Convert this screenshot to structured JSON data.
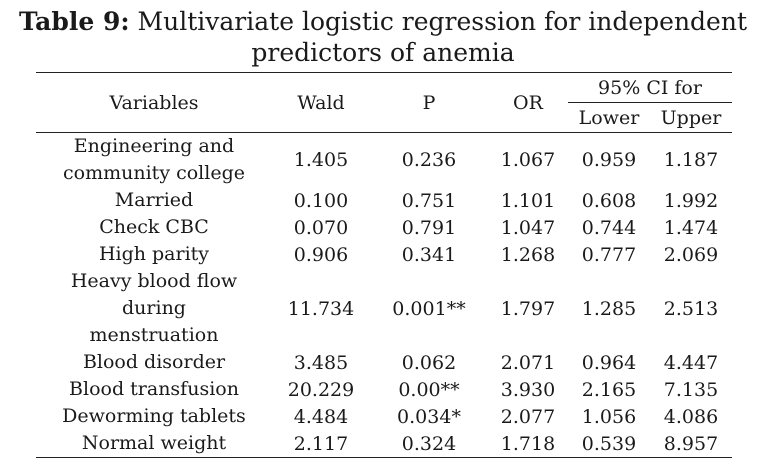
{
  "caption": {
    "label": "Table 9:",
    "text": " Multivariate logistic regression for independent predictors of anemia"
  },
  "headers": {
    "variables": "Variables",
    "wald": "Wald",
    "p": "P",
    "or": "OR",
    "ci": "95% CI for",
    "lower": "Lower",
    "upper": "Upper"
  },
  "rows": [
    {
      "variable": [
        "Engineering and",
        "community college"
      ],
      "wald": "1.405",
      "p": "0.236",
      "or": "1.067",
      "lower": "0.959",
      "upper": "1.187"
    },
    {
      "variable": [
        "Married"
      ],
      "wald": "0.100",
      "p": "0.751",
      "or": "1.101",
      "lower": "0.608",
      "upper": "1.992"
    },
    {
      "variable": [
        "Check CBC"
      ],
      "wald": "0.070",
      "p": "0.791",
      "or": "1.047",
      "lower": "0.744",
      "upper": "1.474"
    },
    {
      "variable": [
        "High parity"
      ],
      "wald": "0.906",
      "p": "0.341",
      "or": "1.268",
      "lower": "0.777",
      "upper": "2.069"
    },
    {
      "variable": [
        "Heavy blood flow",
        "during",
        "menstruation"
      ],
      "wald": "11.734",
      "p": "0.001**",
      "or": "1.797",
      "lower": "1.285",
      "upper": "2.513"
    },
    {
      "variable": [
        "Blood disorder"
      ],
      "wald": "3.485",
      "p": "0.062",
      "or": "2.071",
      "lower": "0.964",
      "upper": "4.447"
    },
    {
      "variable": [
        "Blood transfusion"
      ],
      "wald": "20.229",
      "p": "0.00**",
      "or": "3.930",
      "lower": "2.165",
      "upper": "7.135"
    },
    {
      "variable": [
        "Deworming tablets"
      ],
      "wald": "4.484",
      "p": "0.034*",
      "or": "2.077",
      "lower": "1.056",
      "upper": "4.086"
    },
    {
      "variable": [
        "Normal weight"
      ],
      "wald": "2.117",
      "p": "0.324",
      "or": "1.718",
      "lower": "0.539",
      "upper": "8.957"
    }
  ]
}
